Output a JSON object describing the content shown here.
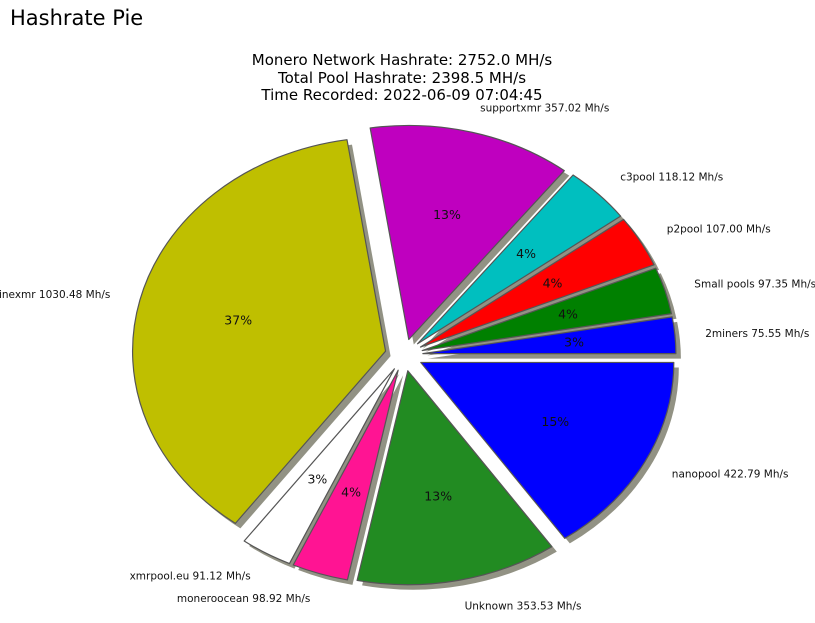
{
  "page": {
    "title": "Hashrate Pie"
  },
  "chart_data": {
    "type": "pie",
    "title_lines": [
      "Monero Network Hashrate: 2752.0 MH/s",
      "Total Pool Hashrate: 2398.5 MH/s",
      "Time Recorded: 2022-06-09 07:04:45"
    ],
    "slices": [
      {
        "name": "2miners",
        "value": 75.55,
        "unit": "Mh/s",
        "pct": "3%",
        "color": "#0000ff"
      },
      {
        "name": "Small pools",
        "value": 97.35,
        "unit": "Mh/s",
        "pct": "4%",
        "color": "#008000"
      },
      {
        "name": "p2pool",
        "value": 107.0,
        "unit": "Mh/s",
        "pct": "4%",
        "color": "#ff0000"
      },
      {
        "name": "c3pool",
        "value": 118.12,
        "unit": "Mh/s",
        "pct": "4%",
        "color": "#00bfbf"
      },
      {
        "name": "supportxmr",
        "value": 357.02,
        "unit": "Mh/s",
        "pct": "13%",
        "color": "#bf00bf"
      },
      {
        "name": "minexmr",
        "value": 1030.48,
        "unit": "Mh/s",
        "pct": "37%",
        "color": "#bfbf00"
      },
      {
        "name": "xmrpool.eu",
        "value": 91.12,
        "unit": "Mh/s",
        "pct": "3%",
        "color": "#ffffff"
      },
      {
        "name": "moneroocean",
        "value": 98.92,
        "unit": "Mh/s",
        "pct": "4%",
        "color": "#ff1493"
      },
      {
        "name": "Unknown",
        "value": 353.53,
        "unit": "Mh/s",
        "pct": "13%",
        "color": "#228b22"
      },
      {
        "name": "nanopool",
        "value": 422.79,
        "unit": "Mh/s",
        "pct": "15%",
        "color": "#0000ff"
      }
    ],
    "legend": "none",
    "shadow": true,
    "exploded": true
  }
}
